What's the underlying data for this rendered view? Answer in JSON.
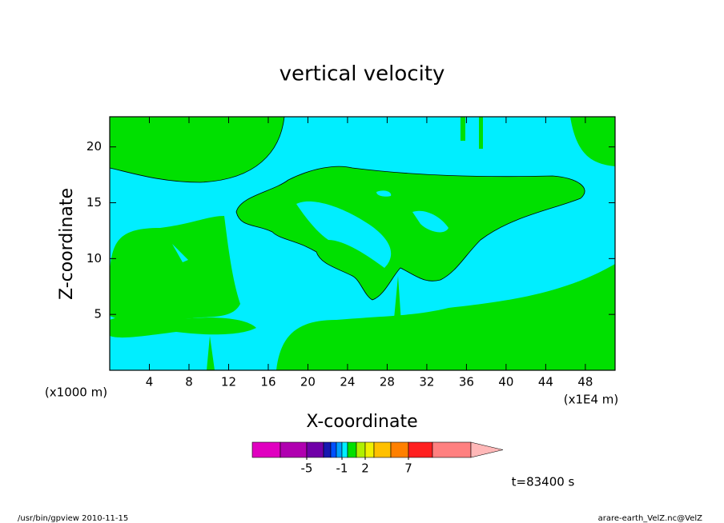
{
  "chart_data": {
    "type": "contour",
    "title": "vertical velocity",
    "x_label": "X-coordinate",
    "y_label": "Z-coordinate",
    "x_unit": "(x1E4 m)",
    "y_unit": "(x1000 m)",
    "xlim": [
      0,
      51
    ],
    "xticks": [
      4,
      8,
      12,
      16,
      20,
      24,
      28,
      32,
      36,
      40,
      44,
      48
    ],
    "ylim": [
      0,
      22.7
    ],
    "yticks": [
      5,
      10,
      15,
      20
    ],
    "colorbar": {
      "colors": [
        "#e000c0",
        "#b000b0",
        "#7000a8",
        "#1818b0",
        "#0050ff",
        "#00a0ff",
        "#00eeff",
        "#00e000",
        "#b0f000",
        "#f0f000",
        "#ffc000",
        "#ff8000",
        "#ff2020",
        "#ff8080",
        "#ffb8b8"
      ],
      "ticks": [
        -5,
        -1,
        2,
        7
      ]
    },
    "annotation": "t=83400 s",
    "footer_left": "/usr/bin/gpview  2010-11-15",
    "footer_right": "arare-earth_VelZ.nc@VelZ"
  }
}
